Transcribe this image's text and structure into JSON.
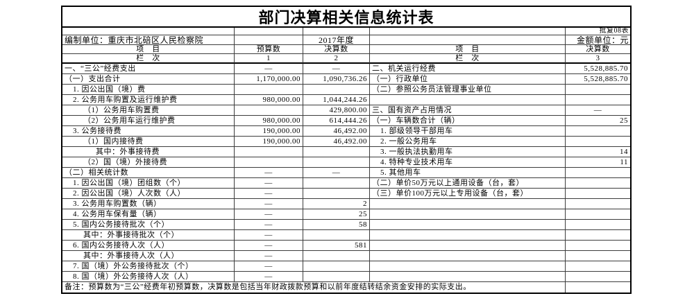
{
  "header": {
    "title": "部门决算相关信息统计表",
    "form_code": "批复08表",
    "prepared_by": "编制单位：重庆市北碚区人民检察院",
    "year": "2017年度",
    "money_unit": "金额单位：元",
    "col_item_left": "项　目",
    "col_budget": "预算数",
    "col_final_left": "决算数",
    "col_item_right": "项　目",
    "col_final_right": "决算数",
    "line_label_left": "栏　次",
    "line_label_right": "栏　次",
    "line_numbers": {
      "c1": "1",
      "c2": "2",
      "c3": "3"
    }
  },
  "body": {
    "rows": [
      {
        "left": "一、“三公”经费支出",
        "indent": 0,
        "budget": "—",
        "final": "—",
        "right": "二、机关运行经费",
        "rindent": 0,
        "rfinal": "5,528,885.70"
      },
      {
        "left": "（一）支出合计",
        "indent": 0,
        "budget": "1,170,000.00",
        "final": "1,090,736.26",
        "right": "（一）行政单位",
        "rindent": 0,
        "rfinal": "5,528,885.70"
      },
      {
        "left": "1. 因公出国（境）费",
        "indent": 1,
        "budget": "",
        "final": "",
        "right": "（二）参照公务员法管理事业单位",
        "rindent": 0,
        "rfinal": ""
      },
      {
        "left": "2. 公务用车购置及运行维护费",
        "indent": 1,
        "budget": "980,000.00",
        "final": "1,044,244.26",
        "right": "",
        "rindent": 0,
        "rfinal": ""
      },
      {
        "left": "（1）公务用车购置费",
        "indent": 2,
        "budget": "",
        "final": "429,800.00",
        "right": "三、国有资产占用情况",
        "rindent": 0,
        "rfinal": "—"
      },
      {
        "left": "（2）公务用车运行维护费",
        "indent": 2,
        "budget": "980,000.00",
        "final": "614,444.26",
        "right": "（一）车辆数合计（辆）",
        "rindent": 0,
        "rfinal": "25"
      },
      {
        "left": "3. 公务接待费",
        "indent": 1,
        "budget": "190,000.00",
        "final": "46,492.00",
        "right": "1. 部级领导干部用车",
        "rindent": 1,
        "rfinal": ""
      },
      {
        "left": "（1）国内接待费",
        "indent": 2,
        "budget": "190,000.00",
        "final": "46,492.00",
        "right": "2. 一般公务用车",
        "rindent": 1,
        "rfinal": ""
      },
      {
        "left": "其中：外事接待费",
        "indent": 3,
        "budget": "",
        "final": "",
        "right": "3. 一般执法执勤用车",
        "rindent": 1,
        "rfinal": "14"
      },
      {
        "left": "（2）国（境）外接待费",
        "indent": 2,
        "budget": "",
        "final": "",
        "right": "4. 特种专业技术用车",
        "rindent": 1,
        "rfinal": "11"
      },
      {
        "left": "（二）相关统计数",
        "indent": 0,
        "budget": "—",
        "final": "—",
        "right": "5. 其他用车",
        "rindent": 1,
        "rfinal": ""
      },
      {
        "left": "1. 因公出国（境）团组数（个）",
        "indent": 1,
        "budget": "—",
        "final": "",
        "right": "（二）单价50万元以上通用设备（台，套）",
        "rindent": 0,
        "rfinal": ""
      },
      {
        "left": "2. 因公出国（境）人次数（人）",
        "indent": 1,
        "budget": "—",
        "final": "",
        "right": "（三）单价100万元以上专用设备（台，套）",
        "rindent": 0,
        "rfinal": ""
      },
      {
        "left": "3. 公务用车购置数（辆）",
        "indent": 1,
        "budget": "—",
        "final": "2",
        "right": "",
        "rindent": 0,
        "rfinal": ""
      },
      {
        "left": "4. 公务用车保有量（辆）",
        "indent": 1,
        "budget": "—",
        "final": "25",
        "right": "",
        "rindent": 0,
        "rfinal": ""
      },
      {
        "left": "5. 国内公务接待批次（个）",
        "indent": 1,
        "budget": "—",
        "final": "58",
        "right": "",
        "rindent": 0,
        "rfinal": ""
      },
      {
        "left": "其中：外事接待批次（个）",
        "indent": 2,
        "budget": "—",
        "final": "",
        "right": "",
        "rindent": 0,
        "rfinal": ""
      },
      {
        "left": "6. 国内公务接待人次（人）",
        "indent": 1,
        "budget": "—",
        "final": "581",
        "right": "",
        "rindent": 0,
        "rfinal": ""
      },
      {
        "left": "其中：外事接待人次（人）",
        "indent": 2,
        "budget": "—",
        "final": "",
        "right": "",
        "rindent": 0,
        "rfinal": ""
      },
      {
        "left": "7. 国（境）外公务接待批次（个）",
        "indent": 1,
        "budget": "—",
        "final": "",
        "right": "",
        "rindent": 0,
        "rfinal": ""
      },
      {
        "left": "8. 国（境）外公务接待人次（人）",
        "indent": 1,
        "budget": "—",
        "final": "",
        "right": "",
        "rindent": 0,
        "rfinal": ""
      }
    ]
  },
  "note": "备注：预算数为“三公”经费年初预算数，决算数是包括当年财政拨款预算和以前年度结转结余资金安排的实际支出。",
  "colors": {
    "border_outer": "#000000",
    "border_inner": "#3c3c3c",
    "text": "#000000",
    "background": "#ffffff"
  }
}
